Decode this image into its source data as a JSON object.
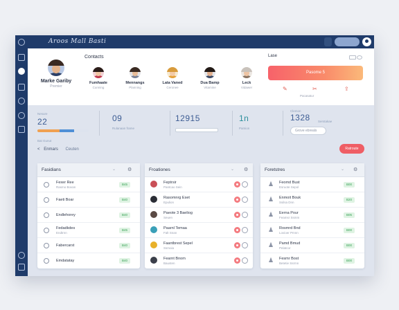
{
  "topbar": {
    "title": "Aroos Mall Basti",
    "pill": ""
  },
  "hero": {
    "profile": {
      "name": "Marke Gariby",
      "sub": "Premier"
    },
    "contacts_title": "Contacts",
    "contacts": [
      {
        "name": "Fumhaate",
        "sub": "Cunning"
      },
      {
        "name": "Mennangs",
        "sub": "Planning"
      },
      {
        "name": "Lata Vaned",
        "sub": "Ceronee"
      },
      {
        "name": "Dua Bamp",
        "sub": "Vitamine"
      },
      {
        "name": "Leck",
        "sub": "Vidawer"
      }
    ],
    "card": {
      "title": "Lase",
      "button": "Pasome 5",
      "tool_label": "Pacasatur"
    }
  },
  "stats": [
    {
      "label": "Nesure",
      "value": "22",
      "sub": "Bat Gunut",
      "progress": 0.72
    },
    {
      "label": "",
      "value": "09",
      "sub": "Rulanaan frame",
      "progress": 0
    },
    {
      "label": "",
      "value": "12915",
      "sub": "",
      "progress": 0
    },
    {
      "label": "",
      "value": "1n",
      "sub": "Pamion",
      "progress": 0
    },
    {
      "label": "Clemon",
      "value": "1328",
      "sub": "Serstakae",
      "progress": 0,
      "input": "Grove ebreals"
    }
  ],
  "tabs": {
    "back": "<",
    "t1": "Enmars",
    "t2": "Ceuten"
  },
  "action_button": "Ratroute",
  "panels": [
    {
      "title": "Fasidians",
      "rows": [
        {
          "label": "Fexer Ree",
          "label2": "Rasmo Bovan",
          "tag": "B45"
        },
        {
          "label": "Faeti Boar",
          "label2": "",
          "tag": "B40"
        },
        {
          "label": "Endlehorey",
          "label2": "",
          "tag": "B40"
        },
        {
          "label": "Fedadkdes",
          "label2": "Endtrnn",
          "tag": "B45"
        },
        {
          "label": "Fabercarst",
          "label2": "",
          "tag": "B40"
        },
        {
          "label": "Emdatatay",
          "label2": "",
          "tag": "B40"
        }
      ]
    },
    {
      "title": "Froationes",
      "rows": [
        {
          "label": "Feptrsir",
          "label2": "Pantcao Sein"
        },
        {
          "label": "Rasomnrg Eset",
          "label2": "Epulion"
        },
        {
          "label": "Paeote 3 Baeliog",
          "label2": "Seuen"
        },
        {
          "label": "Paarnl Temaa",
          "label2": "Falt Snan"
        },
        {
          "label": "Faantbrest Sepel",
          "label2": "Ssmoia"
        },
        {
          "label": "Fearnt Bnom",
          "label2": "Bausten"
        }
      ]
    },
    {
      "title": "Foretstres",
      "rows": [
        {
          "label": "Feomd Bust",
          "label2": "Esruote Sepol",
          "tag": "B00"
        },
        {
          "label": "Enmoit Bouk",
          "label2": "Ssilsa Dnn",
          "tag": "B20"
        },
        {
          "label": "Eerna Pour",
          "label2": "Feamsr Ssmm",
          "tag": "B05"
        },
        {
          "label": "Rosmrd Bnd",
          "label2": "Lovioer Pmnn",
          "tag": "B00"
        },
        {
          "label": "Pamd Bmud",
          "label2": "Pelatcor",
          "tag": "B00"
        },
        {
          "label": "Fesmr Bost",
          "label2": "Betetie Ssrmn",
          "tag": "B00"
        }
      ]
    }
  ],
  "colors": {
    "navy": "#1f3b6a",
    "accent_red": "#ef5e65",
    "progress_blue": "#4f8fd6",
    "progress_orange": "#f0a050"
  }
}
